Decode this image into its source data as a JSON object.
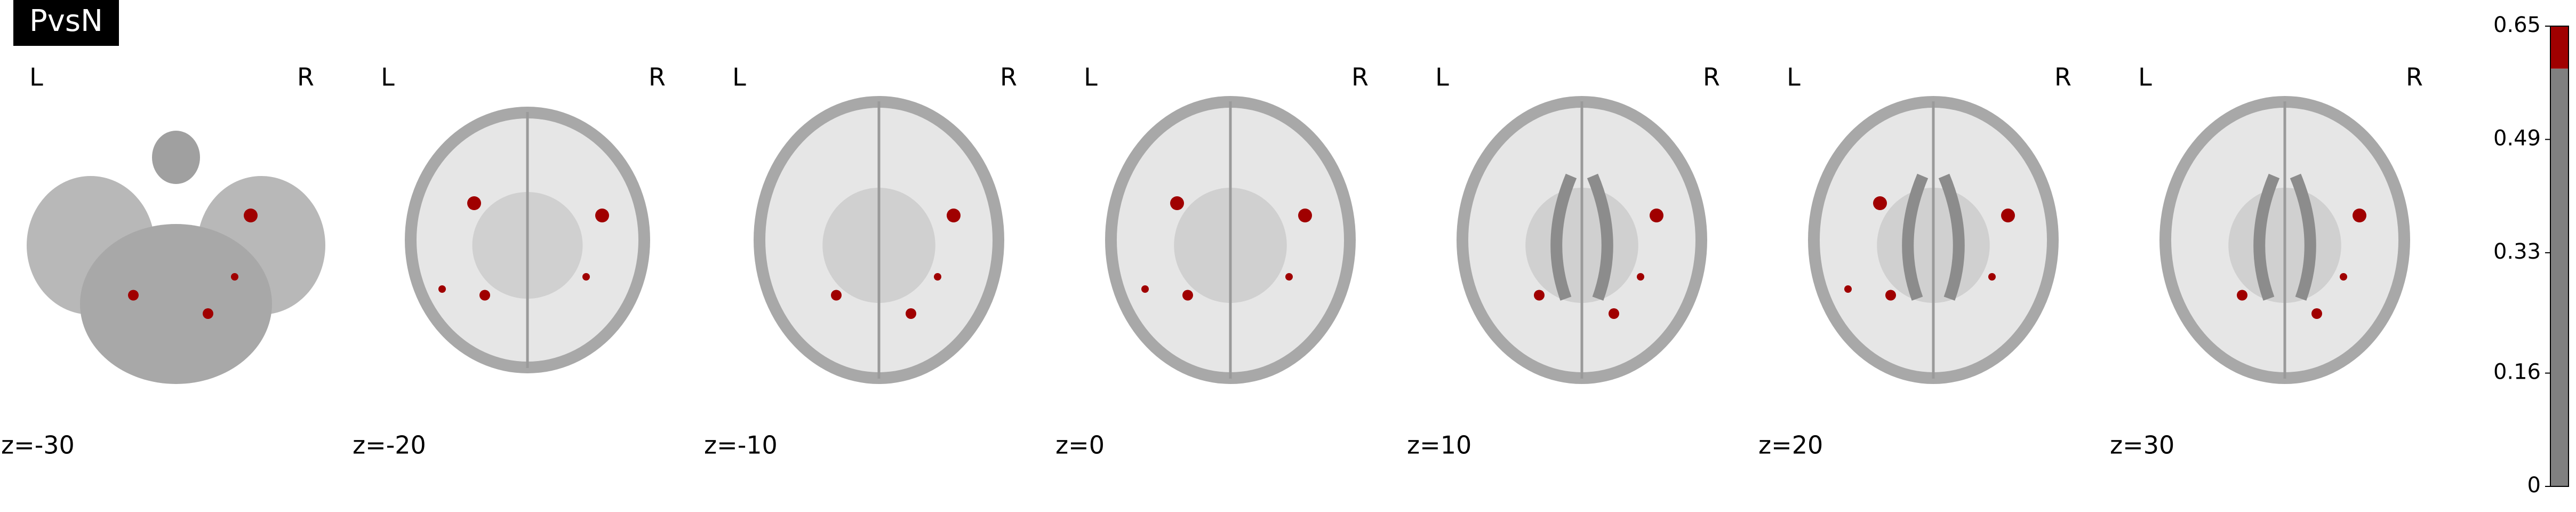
{
  "title": "PvsN",
  "slices": [
    {
      "left": "L",
      "right": "R",
      "label": "z=-30"
    },
    {
      "left": "L",
      "right": "R",
      "label": "z=-20"
    },
    {
      "left": "L",
      "right": "R",
      "label": "z=-10"
    },
    {
      "left": "L",
      "right": "R",
      "label": "z=0"
    },
    {
      "left": "L",
      "right": "R",
      "label": "z=10"
    },
    {
      "left": "L",
      "right": "R",
      "label": "z=20"
    },
    {
      "left": "L",
      "right": "R",
      "label": "z=30"
    }
  ],
  "colorbar": {
    "lim": [
      0,
      0.65
    ],
    "ticks": [
      0,
      0.16,
      0.33,
      0.49,
      0.65
    ],
    "threshold": 0.59
  }
}
